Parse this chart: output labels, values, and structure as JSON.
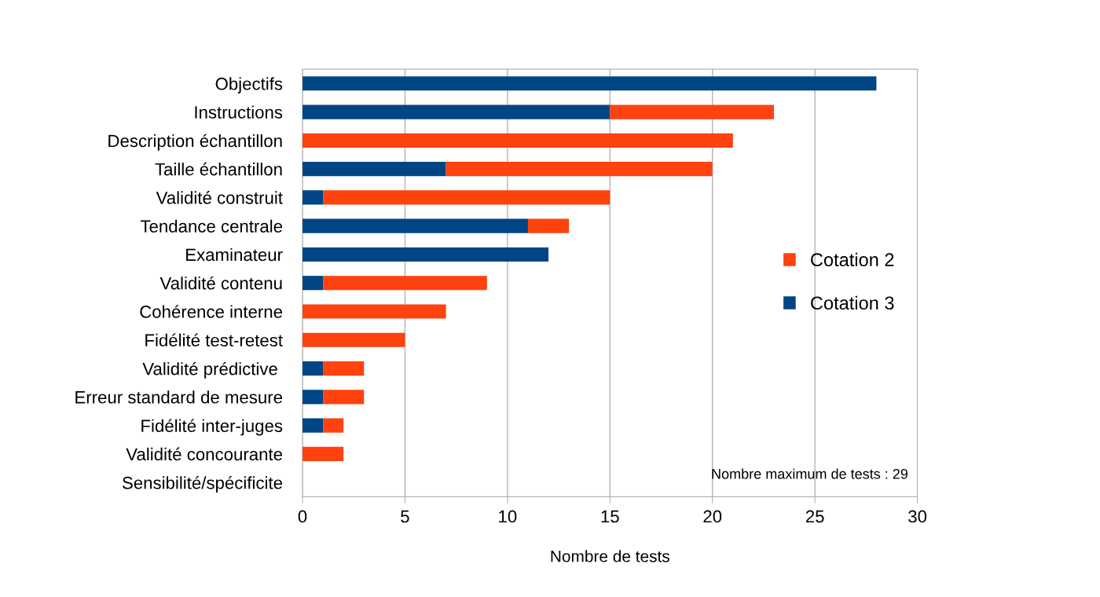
{
  "chart_data": {
    "type": "bar",
    "orientation": "horizontal",
    "stacked": true,
    "categories": [
      "Objectifs",
      "Instructions",
      "Description échantillon",
      "Taille échantillon",
      "Validité construit",
      "Tendance centrale",
      "Examinateur",
      "Validité contenu",
      "Cohérence interne",
      "Fidélité test-retest",
      "Validité prédictive ",
      "Erreur standard de mesure",
      "Fidélité inter-juges",
      "Validité concourante",
      "Sensibilité/spécificite"
    ],
    "series": [
      {
        "name": "Cotation 3",
        "color": "#004586",
        "values": [
          28,
          15,
          0,
          7,
          1,
          11,
          12,
          1,
          0,
          0,
          1,
          1,
          1,
          0,
          0
        ]
      },
      {
        "name": "Cotation 2",
        "color": "#ff420e",
        "values": [
          0,
          8,
          21,
          13,
          14,
          2,
          0,
          8,
          7,
          5,
          2,
          2,
          1,
          2,
          0
        ]
      }
    ],
    "xlabel": "Nombre de tests",
    "xlim": [
      0,
      30
    ],
    "xticks": [
      0,
      5,
      10,
      15,
      20,
      25,
      30
    ],
    "grid": "x",
    "legend": "right",
    "annotations": [
      "Nombre maximum de tests : 29"
    ]
  }
}
